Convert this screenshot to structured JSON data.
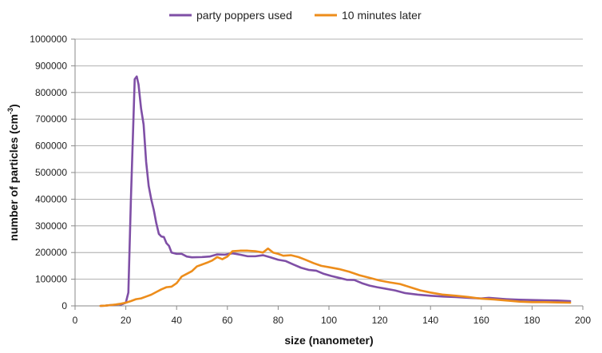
{
  "chart_data": {
    "type": "line",
    "title": "",
    "xlabel": "size (nanometer)",
    "ylabel": "number of particles (cm",
    "ylabel_sup": "-3",
    "ylabel_close": ")",
    "xlim": [
      0,
      200
    ],
    "ylim": [
      0,
      1000000
    ],
    "x_ticks": [
      0,
      20,
      40,
      60,
      80,
      100,
      120,
      140,
      160,
      180,
      200
    ],
    "y_ticks": [
      0,
      100000,
      200000,
      300000,
      400000,
      500000,
      600000,
      700000,
      800000,
      900000,
      1000000
    ],
    "grid": true,
    "legend_position": "top",
    "series": [
      {
        "name": "party poppers used",
        "color": "#7f4fa6",
        "points": [
          [
            10,
            0
          ],
          [
            12,
            1000
          ],
          [
            14,
            3000
          ],
          [
            16,
            4000
          ],
          [
            17,
            6000
          ],
          [
            18,
            5000
          ],
          [
            19,
            8000
          ],
          [
            20,
            12000
          ],
          [
            21,
            50000
          ],
          [
            22,
            400000
          ],
          [
            23,
            700000
          ],
          [
            23.5,
            850000
          ],
          [
            24.3,
            860000
          ],
          [
            25,
            830000
          ],
          [
            26,
            740000
          ],
          [
            27,
            680000
          ],
          [
            28,
            540000
          ],
          [
            29,
            450000
          ],
          [
            30,
            400000
          ],
          [
            31,
            360000
          ],
          [
            32,
            310000
          ],
          [
            33,
            270000
          ],
          [
            34,
            260000
          ],
          [
            35,
            258000
          ],
          [
            36,
            235000
          ],
          [
            37,
            225000
          ],
          [
            38,
            200000
          ],
          [
            40,
            195000
          ],
          [
            42,
            195000
          ],
          [
            44,
            185000
          ],
          [
            46,
            182000
          ],
          [
            50,
            183000
          ],
          [
            53,
            185000
          ],
          [
            56,
            193000
          ],
          [
            59,
            192000
          ],
          [
            62,
            197000
          ],
          [
            65,
            192000
          ],
          [
            68,
            186000
          ],
          [
            71,
            186000
          ],
          [
            74,
            190000
          ],
          [
            77,
            182000
          ],
          [
            80,
            173000
          ],
          [
            83,
            168000
          ],
          [
            86,
            155000
          ],
          [
            89,
            143000
          ],
          [
            92,
            135000
          ],
          [
            95,
            132000
          ],
          [
            98,
            120000
          ],
          [
            101,
            112000
          ],
          [
            104,
            105000
          ],
          [
            107,
            98000
          ],
          [
            110,
            97000
          ],
          [
            113,
            85000
          ],
          [
            116,
            76000
          ],
          [
            119,
            70000
          ],
          [
            122,
            65000
          ],
          [
            126,
            58000
          ],
          [
            130,
            48000
          ],
          [
            135,
            42000
          ],
          [
            140,
            38000
          ],
          [
            145,
            35000
          ],
          [
            150,
            33000
          ],
          [
            155,
            30000
          ],
          [
            160,
            28000
          ],
          [
            163,
            30000
          ],
          [
            166,
            28000
          ],
          [
            170,
            25000
          ],
          [
            175,
            23000
          ],
          [
            180,
            22000
          ],
          [
            185,
            21000
          ],
          [
            190,
            20000
          ],
          [
            195,
            18000
          ]
        ]
      },
      {
        "name": "10 minutes later",
        "color": "#ed8d1b",
        "points": [
          [
            10,
            0
          ],
          [
            12,
            1000
          ],
          [
            14,
            3000
          ],
          [
            16,
            5000
          ],
          [
            18,
            8000
          ],
          [
            20,
            12000
          ],
          [
            22,
            18000
          ],
          [
            24,
            25000
          ],
          [
            26,
            28000
          ],
          [
            28,
            35000
          ],
          [
            30,
            42000
          ],
          [
            32,
            52000
          ],
          [
            34,
            62000
          ],
          [
            36,
            70000
          ],
          [
            38,
            72000
          ],
          [
            40,
            85000
          ],
          [
            42,
            110000
          ],
          [
            44,
            120000
          ],
          [
            46,
            130000
          ],
          [
            48,
            148000
          ],
          [
            50,
            155000
          ],
          [
            52,
            162000
          ],
          [
            54,
            170000
          ],
          [
            56,
            183000
          ],
          [
            58,
            175000
          ],
          [
            60,
            185000
          ],
          [
            62,
            205000
          ],
          [
            65,
            207000
          ],
          [
            68,
            207000
          ],
          [
            71,
            205000
          ],
          [
            74,
            200000
          ],
          [
            76,
            215000
          ],
          [
            78,
            200000
          ],
          [
            80,
            195000
          ],
          [
            82,
            188000
          ],
          [
            85,
            190000
          ],
          [
            88,
            183000
          ],
          [
            91,
            172000
          ],
          [
            94,
            160000
          ],
          [
            97,
            150000
          ],
          [
            100,
            145000
          ],
          [
            104,
            138000
          ],
          [
            108,
            128000
          ],
          [
            112,
            115000
          ],
          [
            116,
            105000
          ],
          [
            120,
            95000
          ],
          [
            124,
            88000
          ],
          [
            128,
            82000
          ],
          [
            132,
            70000
          ],
          [
            136,
            58000
          ],
          [
            140,
            50000
          ],
          [
            145,
            42000
          ],
          [
            150,
            38000
          ],
          [
            155,
            33000
          ],
          [
            160,
            27000
          ],
          [
            165,
            24000
          ],
          [
            170,
            20000
          ],
          [
            175,
            16000
          ],
          [
            180,
            14000
          ],
          [
            185,
            14000
          ],
          [
            190,
            13000
          ],
          [
            195,
            12000
          ]
        ]
      }
    ]
  }
}
